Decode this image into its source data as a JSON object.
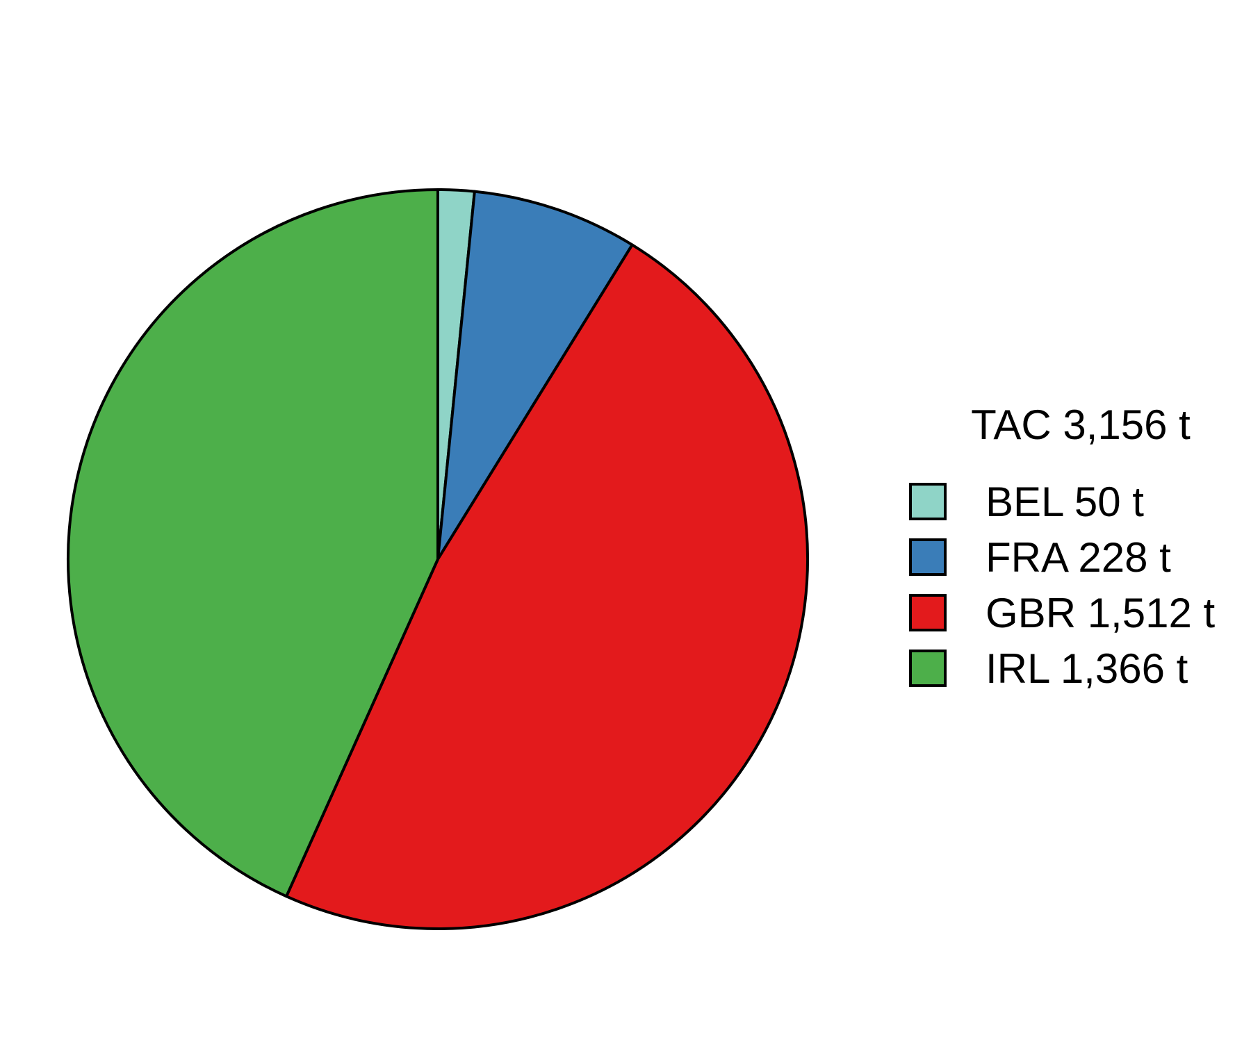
{
  "chart_data": {
    "type": "pie",
    "legend_title": "TAC 3,156 t",
    "legend_position": "right",
    "start": "top",
    "direction": "clockwise",
    "slices": [
      {
        "label": "BEL 50 t",
        "value": 50,
        "color": "#8fd4c7"
      },
      {
        "label": "FRA 228 t",
        "value": 228,
        "color": "#3a7db8"
      },
      {
        "label": "GBR 1,512 t",
        "value": 1512,
        "color": "#e31a1c"
      },
      {
        "label": "IRL 1,366 t",
        "value": 1366,
        "color": "#4daf4a"
      }
    ]
  }
}
